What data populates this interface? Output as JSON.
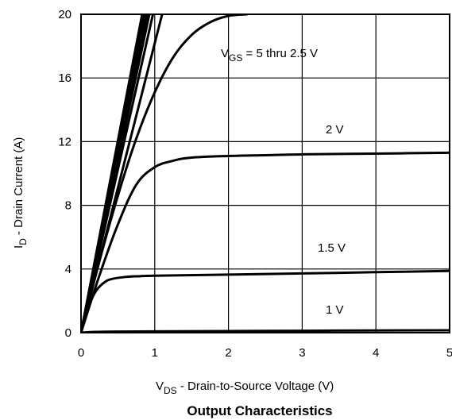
{
  "chart_data": {
    "type": "line",
    "title": "Output Characteristics",
    "xlabel": "V_DS - Drain-to-Source Voltage (V)",
    "ylabel": "I_D - Drain Current (A)",
    "xlim": [
      0,
      5
    ],
    "ylim": [
      0,
      20
    ],
    "x_ticks": [
      "0",
      "1",
      "2",
      "3",
      "4",
      "5"
    ],
    "y_ticks": [
      "0",
      "4",
      "8",
      "12",
      "16",
      "20"
    ],
    "grid": true,
    "annotations": {
      "vgs_high": "V_GS = 5 thru 2.5 V",
      "v2": "2 V",
      "v15": "1.5 V",
      "v1": "1 V"
    },
    "series": [
      {
        "x": [
          0,
          0.85
        ],
        "y": [
          0,
          20.5
        ]
      },
      {
        "x": [
          0,
          0.87
        ],
        "y": [
          0,
          20.5
        ]
      },
      {
        "x": [
          0,
          0.89
        ],
        "y": [
          0,
          20.5
        ]
      },
      {
        "x": [
          0,
          0.92
        ],
        "y": [
          0,
          20.5
        ]
      },
      {
        "x": [
          0,
          0.95
        ],
        "y": [
          0,
          20.5
        ]
      },
      {
        "x": [
          0,
          1.0
        ],
        "y": [
          0,
          20.5
        ]
      },
      {
        "x": [
          0,
          1.1
        ],
        "y": [
          0,
          20.0
        ]
      },
      {
        "x": [
          0,
          0.25,
          0.5,
          0.75,
          1.0,
          1.25,
          1.5,
          1.75,
          2.0,
          2.25
        ],
        "y": [
          0,
          4.5,
          8.6,
          12.2,
          15.1,
          17.3,
          18.7,
          19.5,
          19.9,
          20.0
        ]
      },
      {
        "x": [
          0,
          0.25,
          0.5,
          0.75,
          1.0,
          1.25,
          1.5,
          2.0,
          2.5,
          3.0,
          4.0,
          5.0
        ],
        "y": [
          0,
          3.6,
          6.8,
          9.3,
          10.4,
          10.8,
          11.0,
          11.1,
          11.15,
          11.2,
          11.25,
          11.3
        ]
      },
      {
        "x": [
          0,
          0.1,
          0.2,
          0.3,
          0.4,
          0.6,
          0.8,
          1.0,
          2.0,
          3.0,
          4.0,
          5.0
        ],
        "y": [
          0,
          1.6,
          2.6,
          3.1,
          3.35,
          3.5,
          3.55,
          3.58,
          3.65,
          3.72,
          3.8,
          3.88
        ]
      },
      {
        "x": [
          0,
          0.2,
          0.5,
          1.0,
          2.0,
          3.0,
          4.0,
          5.0
        ],
        "y": [
          0,
          0.05,
          0.07,
          0.08,
          0.1,
          0.12,
          0.14,
          0.15
        ]
      }
    ]
  }
}
